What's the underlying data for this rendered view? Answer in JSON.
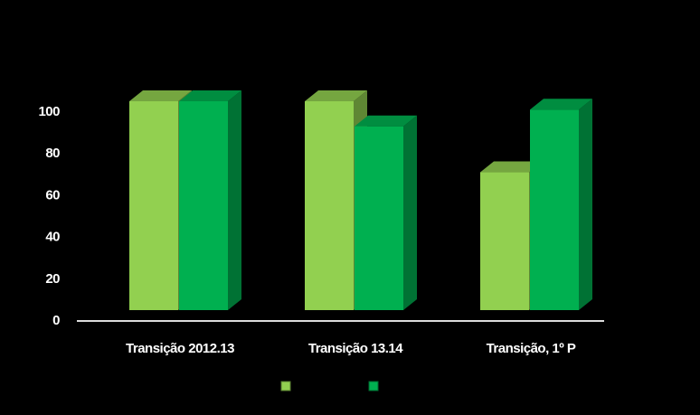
{
  "chart_data": {
    "type": "bar3d",
    "categories": [
      "Transição 2012.13",
      "Transição 13.14",
      "Transição, 1º P"
    ],
    "series": [
      {
        "color": "#92d050",
        "values": [
          100,
          100,
          66
        ]
      },
      {
        "color": "#00b050",
        "values": [
          100,
          88,
          96
        ]
      }
    ],
    "ylim": [
      0,
      100
    ],
    "yticks": [
      0,
      20,
      40,
      60,
      80,
      100
    ]
  }
}
